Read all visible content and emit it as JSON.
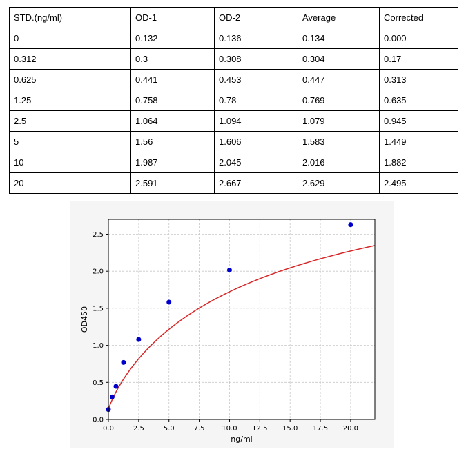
{
  "table": {
    "headers": [
      "STD.(ng/ml)",
      "OD-1",
      "OD-2",
      "Average",
      "Corrected"
    ],
    "rows": [
      [
        "0",
        "0.132",
        "0.136",
        "0.134",
        "0.000"
      ],
      [
        "0.312",
        "0.3",
        "0.308",
        "0.304",
        "0.17"
      ],
      [
        "0.625",
        "0.441",
        "0.453",
        "0.447",
        "0.313"
      ],
      [
        "1.25",
        "0.758",
        "0.78",
        "0.769",
        "0.635"
      ],
      [
        "2.5",
        "1.064",
        "1.094",
        "1.079",
        "0.945"
      ],
      [
        "5",
        "1.56",
        "1.606",
        "1.583",
        "1.449"
      ],
      [
        "10",
        "1.987",
        "2.045",
        "2.016",
        "1.882"
      ],
      [
        "20",
        "2.591",
        "2.667",
        "2.629",
        "2.495"
      ]
    ]
  },
  "chart_data": {
    "type": "scatter",
    "title": "",
    "xlabel": "ng/ml",
    "ylabel": "OD450",
    "xlim": [
      0,
      22
    ],
    "ylim": [
      0,
      2.7
    ],
    "xticks": [
      "0.0",
      "2.5",
      "5.0",
      "7.5",
      "10.0",
      "12.5",
      "15.0",
      "17.5",
      "20.0"
    ],
    "yticks": [
      "0.0",
      "0.5",
      "1.0",
      "1.5",
      "2.0",
      "2.5"
    ],
    "grid": true,
    "series": [
      {
        "points": [
          [
            0,
            0.134
          ],
          [
            0.312,
            0.304
          ],
          [
            0.625,
            0.447
          ],
          [
            1.25,
            0.769
          ],
          [
            2.5,
            1.079
          ],
          [
            5,
            1.583
          ],
          [
            10,
            2.016
          ],
          [
            20,
            2.629
          ]
        ],
        "color": "#0000cc"
      }
    ],
    "fit_curve": {
      "type": "four-parameter-logistic",
      "color": "#d62728",
      "params": {
        "a": 0.13,
        "b": 0.86,
        "c": 14.0,
        "d": 3.85
      }
    }
  }
}
